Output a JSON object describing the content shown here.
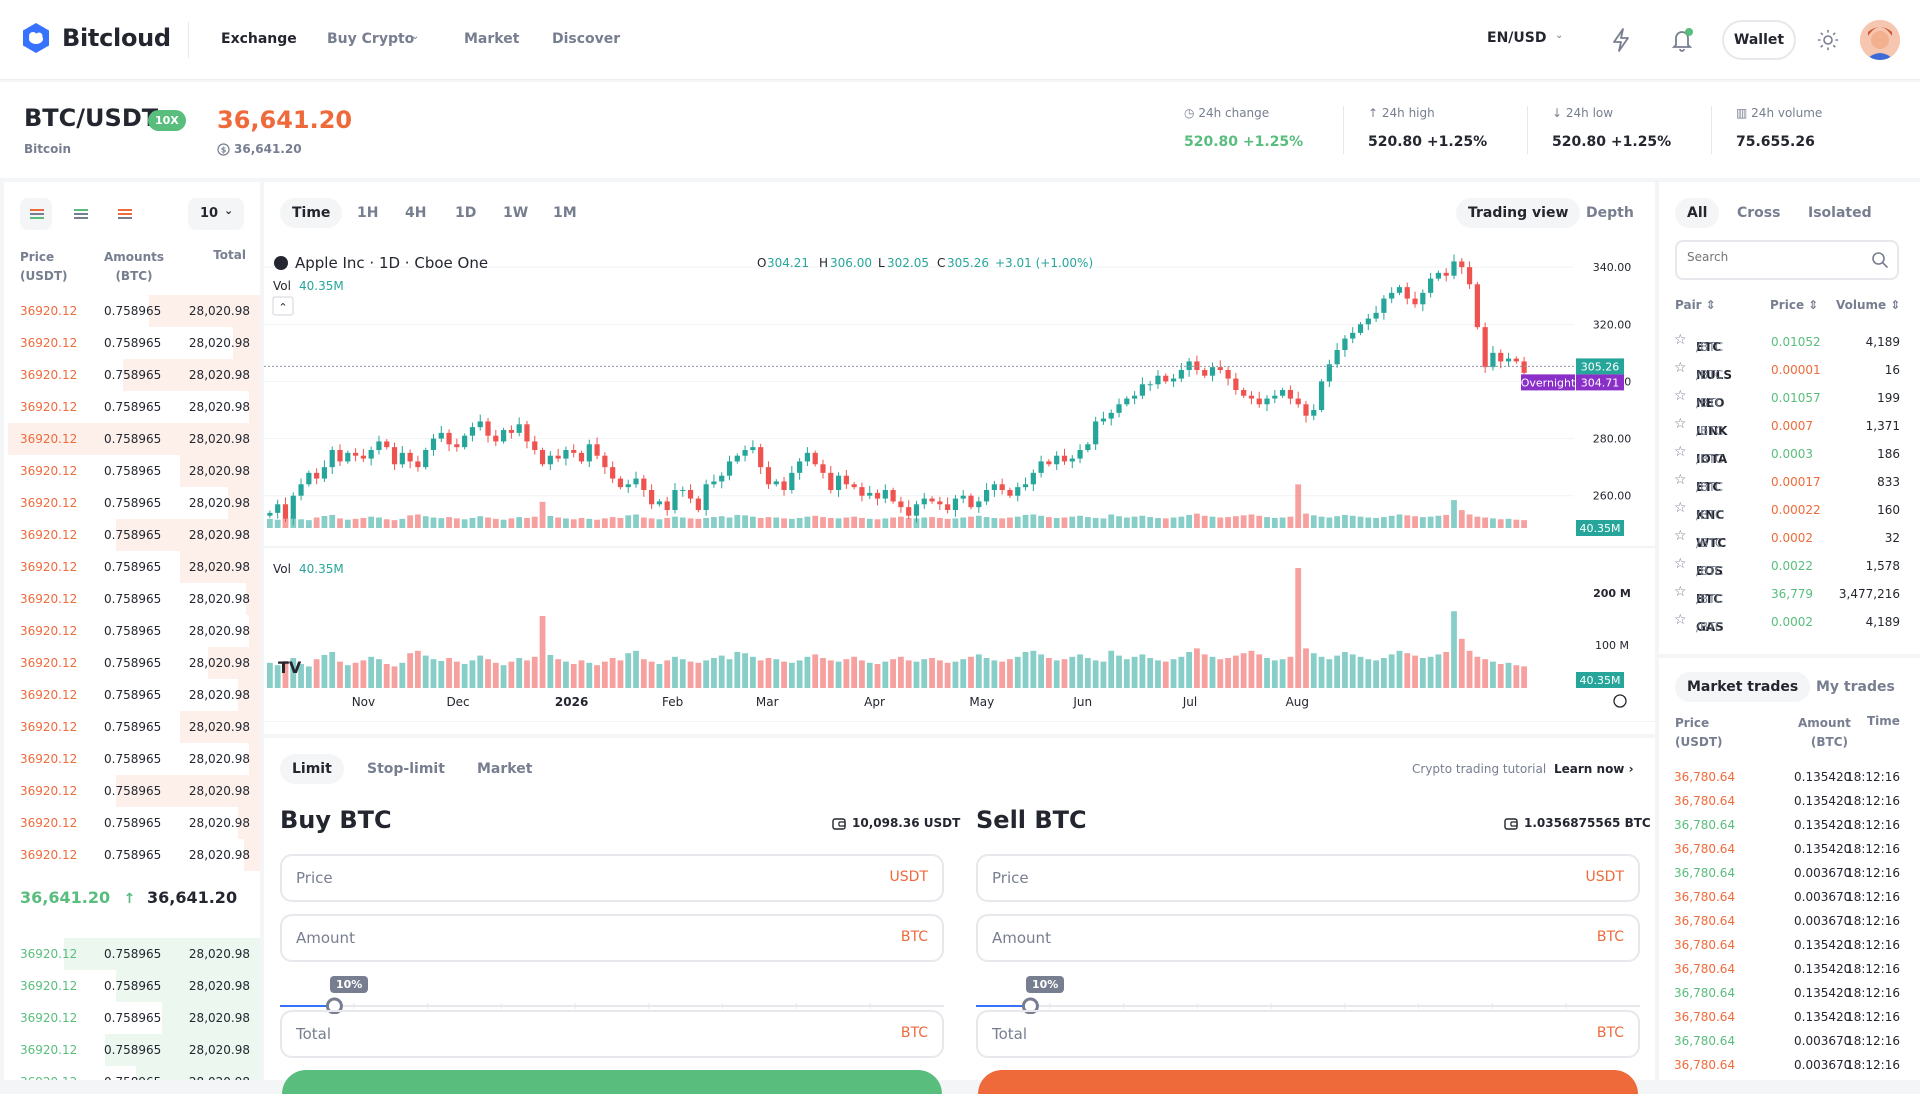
{
  "brand": {
    "name": "Bitcloud"
  },
  "nav": {
    "items": [
      "Exchange",
      "Buy Crypto",
      "Market",
      "Discover"
    ]
  },
  "topright": {
    "lang": "EN/USD",
    "wallet": "Wallet"
  },
  "pair": {
    "symbol": "BTC/USDT",
    "leverage": "10X",
    "name": "Bitcoin",
    "price": "36,641.20",
    "subprice": "36,641.20"
  },
  "stats": [
    {
      "label": "24h change",
      "value": "520.80 +1.25%",
      "color": "#58bd7d"
    },
    {
      "label": "24h high",
      "value": "520.80 +1.25%",
      "color": "#23262f"
    },
    {
      "label": "24h low",
      "value": "520.80 +1.25%",
      "color": "#23262f"
    },
    {
      "label": "24h volume",
      "value": "75.655.26",
      "color": "#23262f"
    }
  ],
  "orderbook": {
    "selector": "10",
    "headers": {
      "price": "Price",
      "price_unit": "(USDT)",
      "amount": "Amounts",
      "amount_unit": "(BTC)",
      "total": "Total"
    },
    "asks": [
      {
        "p": "36920.12",
        "a": "0.758965",
        "t": "28,020.98",
        "depth": 0.45
      },
      {
        "p": "36920.12",
        "a": "0.758965",
        "t": "28,020.98",
        "depth": 0.12
      },
      {
        "p": "36920.12",
        "a": "0.758965",
        "t": "28,020.98",
        "depth": 0.55
      },
      {
        "p": "36920.12",
        "a": "0.758965",
        "t": "28,020.98",
        "depth": 0.06
      },
      {
        "p": "36920.12",
        "a": "0.758965",
        "t": "28,020.98",
        "depth": 1.0
      },
      {
        "p": "36920.12",
        "a": "0.758965",
        "t": "28,020.98",
        "depth": 0.33
      },
      {
        "p": "36920.12",
        "a": "0.758965",
        "t": "28,020.98",
        "depth": 0.14
      },
      {
        "p": "36920.12",
        "a": "0.758965",
        "t": "28,020.98",
        "depth": 0.58
      },
      {
        "p": "36920.12",
        "a": "0.758965",
        "t": "28,020.98",
        "depth": 0.33
      },
      {
        "p": "36920.12",
        "a": "0.758965",
        "t": "28,020.98",
        "depth": 0.07
      },
      {
        "p": "36920.12",
        "a": "0.758965",
        "t": "28,020.98",
        "depth": 0.06
      },
      {
        "p": "36920.12",
        "a": "0.758965",
        "t": "28,020.98",
        "depth": 0.22
      },
      {
        "p": "36920.12",
        "a": "0.758965",
        "t": "28,020.98",
        "depth": 0.1
      },
      {
        "p": "36920.12",
        "a": "0.758965",
        "t": "28,020.98",
        "depth": 0.33
      },
      {
        "p": "36920.12",
        "a": "0.758965",
        "t": "28,020.98",
        "depth": 0.06
      },
      {
        "p": "36920.12",
        "a": "0.758965",
        "t": "28,020.98",
        "depth": 0.58
      },
      {
        "p": "36920.12",
        "a": "0.758965",
        "t": "28,020.98",
        "depth": 0.1
      },
      {
        "p": "36920.12",
        "a": "0.758965",
        "t": "28,020.98",
        "depth": 0.08
      }
    ],
    "mid": {
      "price": "36,641.20",
      "arrow": "↑",
      "last": "36,641.20"
    },
    "bids": [
      {
        "p": "36920.12",
        "a": "0.758965",
        "t": "28,020.98",
        "depth": 0.78
      },
      {
        "p": "36920.12",
        "a": "0.758965",
        "t": "28,020.98",
        "depth": 0.58
      },
      {
        "p": "36920.12",
        "a": "0.758965",
        "t": "28,020.98",
        "depth": 0.4
      },
      {
        "p": "36920.12",
        "a": "0.758965",
        "t": "28,020.98",
        "depth": 0.62
      },
      {
        "p": "36920.12",
        "a": "0.758965",
        "t": "28,020.98",
        "depth": 0.5
      }
    ]
  },
  "chart_tabs": {
    "intervals": [
      "Time",
      "1H",
      "4H",
      "1D",
      "1W",
      "1M"
    ],
    "views": [
      "Trading view",
      "Depth"
    ]
  },
  "chart_data": {
    "type": "candlestick",
    "title": "Apple Inc · 1D · Cboe One",
    "ohlc": {
      "o": "304.21",
      "h": "306.00",
      "l": "302.05",
      "c": "305.26",
      "chg": "+3.01 (+1.00%)"
    },
    "vol_label": "Vol",
    "vol_value": "40.35M",
    "price_ticks": [
      "340.00",
      "320.00",
      "300.00",
      "280.00",
      "260.00"
    ],
    "vol_ticks": [
      "200 M",
      "100 M"
    ],
    "last_price": "305.26",
    "overnight_label": "Overnight",
    "overnight_price": "304.71",
    "x_ticks": [
      "Nov",
      "Dec",
      "2026",
      "Feb",
      "Mar",
      "Apr",
      "May",
      "Jun",
      "Jul",
      "Aug"
    ],
    "ylim": [
      248,
      346
    ],
    "closes": [
      254,
      257,
      252,
      260,
      264,
      268,
      266,
      270,
      276,
      272,
      275,
      274,
      273,
      276,
      279,
      277,
      271,
      275,
      272,
      270,
      276,
      280,
      282,
      278,
      277,
      281,
      284,
      286,
      281,
      279,
      283,
      282,
      285,
      279,
      276,
      271,
      274,
      273,
      276,
      275,
      272,
      278,
      274,
      270,
      266,
      263,
      264,
      266,
      262,
      257,
      258,
      255,
      262,
      262,
      259,
      255,
      264,
      265,
      267,
      272,
      274,
      276,
      277,
      270,
      264,
      265,
      262,
      268,
      272,
      275,
      271,
      268,
      262,
      267,
      264,
      263,
      260,
      261,
      259,
      262,
      258,
      256,
      253,
      257,
      259,
      258,
      257,
      255,
      259,
      260,
      256,
      258,
      262,
      264,
      262,
      260,
      263,
      264,
      268,
      272,
      271,
      274,
      272,
      273,
      276,
      278,
      286,
      287,
      289,
      292,
      294,
      295,
      299,
      299,
      302,
      300,
      301,
      304,
      307,
      304,
      302,
      305,
      304,
      301,
      297,
      295,
      294,
      292,
      294,
      295,
      297,
      294,
      292,
      288,
      290,
      300,
      306,
      311,
      315,
      317,
      320,
      322,
      324,
      329,
      331,
      333,
      329,
      327,
      331,
      336,
      338,
      337,
      342,
      340,
      334,
      319,
      305,
      310,
      307,
      308,
      307,
      303
    ],
    "volumes": [
      42,
      38,
      45,
      50,
      40,
      36,
      48,
      55,
      60,
      44,
      38,
      42,
      46,
      52,
      48,
      40,
      36,
      42,
      58,
      62,
      54,
      48,
      45,
      50,
      44,
      40,
      46,
      54,
      48,
      42,
      38,
      44,
      50,
      46,
      52,
      120,
      55,
      48,
      44,
      40,
      46,
      42,
      38,
      44,
      50,
      46,
      58,
      62,
      48,
      44,
      40,
      46,
      52,
      48,
      44,
      42,
      46,
      50,
      54,
      48,
      60,
      58,
      52,
      46,
      50,
      48,
      44,
      42,
      46,
      52,
      56,
      50,
      46,
      44,
      48,
      52,
      46,
      42,
      40,
      44,
      48,
      52,
      46,
      44,
      48,
      50,
      46,
      42,
      44,
      48,
      52,
      56,
      50,
      46,
      44,
      48,
      52,
      60,
      62,
      56,
      50,
      46,
      48,
      52,
      56,
      50,
      46,
      44,
      62,
      54,
      48,
      52,
      56,
      50,
      46,
      44,
      48,
      52,
      60,
      66,
      56,
      52,
      48,
      50,
      54,
      58,
      62,
      56,
      50,
      46,
      48,
      52,
      200,
      66,
      58,
      52,
      48,
      54,
      60,
      56,
      52,
      48,
      46,
      50,
      56,
      62,
      58,
      54,
      50,
      52,
      56,
      60,
      128,
      82,
      62,
      52,
      48,
      44,
      40,
      42,
      38,
      36
    ]
  },
  "order_tabs": {
    "types": [
      "Limit",
      "Stop-limit",
      "Market"
    ],
    "tutorial": "Crypto trading tutorial",
    "learn": "Learn now"
  },
  "buy": {
    "title": "Buy BTC",
    "balance": "10,098.36 USDT",
    "price_label": "Price",
    "price_unit": "USDT",
    "amount_label": "Amount",
    "amount_unit": "BTC",
    "pct": "10%",
    "pct_value": 0.1,
    "total_label": "Total",
    "total_unit": "BTC"
  },
  "sell": {
    "title": "Sell BTC",
    "balance": "1.0356875565 BTC",
    "price_label": "Price",
    "price_unit": "USDT",
    "amount_label": "Amount",
    "amount_unit": "BTC",
    "pct": "10%",
    "pct_value": 0.1,
    "total_label": "Total",
    "total_unit": "BTC"
  },
  "markets": {
    "tabs": [
      "All",
      "Cross",
      "Isolated"
    ],
    "search_placeholder": "Search",
    "headers": [
      "Pair",
      "Price",
      "Volume"
    ],
    "rows": [
      {
        "pair": "ETC",
        "quote": "/BTC",
        "price": "0.01052",
        "vol": "4,189",
        "color": "#58bd7d"
      },
      {
        "pair": "NULS",
        "quote": "/BTC",
        "price": "0.00001",
        "vol": "16",
        "color": "#ef6a3a"
      },
      {
        "pair": "NEO",
        "quote": "/BTC",
        "price": "0.01057",
        "vol": "199",
        "color": "#58bd7d"
      },
      {
        "pair": "LINK",
        "quote": "/BTC",
        "price": "0.0007",
        "vol": "1,371",
        "color": "#ef6a3a"
      },
      {
        "pair": "IOTA",
        "quote": "/BTC",
        "price": "0.0003",
        "vol": "186",
        "color": "#58bd7d"
      },
      {
        "pair": "ETC",
        "quote": "/BTC",
        "price": "0.00017",
        "vol": "833",
        "color": "#ef6a3a"
      },
      {
        "pair": "KNC",
        "quote": "/BTC",
        "price": "0.00022",
        "vol": "160",
        "color": "#ef6a3a"
      },
      {
        "pair": "WTC",
        "quote": "/BTC",
        "price": "0.0002",
        "vol": "32",
        "color": "#ef6a3a"
      },
      {
        "pair": "EOS",
        "quote": "/BTC",
        "price": "0.0022",
        "vol": "1,578",
        "color": "#58bd7d"
      },
      {
        "pair": "BTC",
        "quote": "/BTC",
        "price": "36,779",
        "vol": "3,477,216",
        "color": "#58bd7d"
      },
      {
        "pair": "GAS",
        "quote": "/BTC",
        "price": "0.0002",
        "vol": "4,189",
        "color": "#58bd7d"
      }
    ]
  },
  "trades": {
    "tabs": [
      "Market trades",
      "My trades"
    ],
    "headers": {
      "price": "Price",
      "price_unit": "(USDT)",
      "amount": "Amount",
      "amount_unit": "(BTC)",
      "time": "Time"
    },
    "rows": [
      {
        "p": "36,780.64",
        "a": "0.135420",
        "t": "18:12:16",
        "color": "#ef6a3a"
      },
      {
        "p": "36,780.64",
        "a": "0.135420",
        "t": "18:12:16",
        "color": "#ef6a3a"
      },
      {
        "p": "36,780.64",
        "a": "0.135420",
        "t": "18:12:16",
        "color": "#58bd7d"
      },
      {
        "p": "36,780.64",
        "a": "0.135420",
        "t": "18:12:16",
        "color": "#ef6a3a"
      },
      {
        "p": "36,780.64",
        "a": "0.003670",
        "t": "18:12:16",
        "color": "#58bd7d"
      },
      {
        "p": "36,780.64",
        "a": "0.003670",
        "t": "18:12:16",
        "color": "#ef6a3a"
      },
      {
        "p": "36,780.64",
        "a": "0.003670",
        "t": "18:12:16",
        "color": "#ef6a3a"
      },
      {
        "p": "36,780.64",
        "a": "0.135420",
        "t": "18:12:16",
        "color": "#ef6a3a"
      },
      {
        "p": "36,780.64",
        "a": "0.135420",
        "t": "18:12:16",
        "color": "#ef6a3a"
      },
      {
        "p": "36,780.64",
        "a": "0.135420",
        "t": "18:12:16",
        "color": "#58bd7d"
      },
      {
        "p": "36,780.64",
        "a": "0.135420",
        "t": "18:12:16",
        "color": "#ef6a3a"
      },
      {
        "p": "36,780.64",
        "a": "0.003670",
        "t": "18:12:16",
        "color": "#58bd7d"
      },
      {
        "p": "36,780.64",
        "a": "0.003670",
        "t": "18:12:16",
        "color": "#ef6a3a"
      }
    ]
  },
  "colors": {
    "green": "#58bd7d",
    "red": "#ef6a3a",
    "brand": "#3772ff",
    "overnight": "#8b2fc9"
  }
}
